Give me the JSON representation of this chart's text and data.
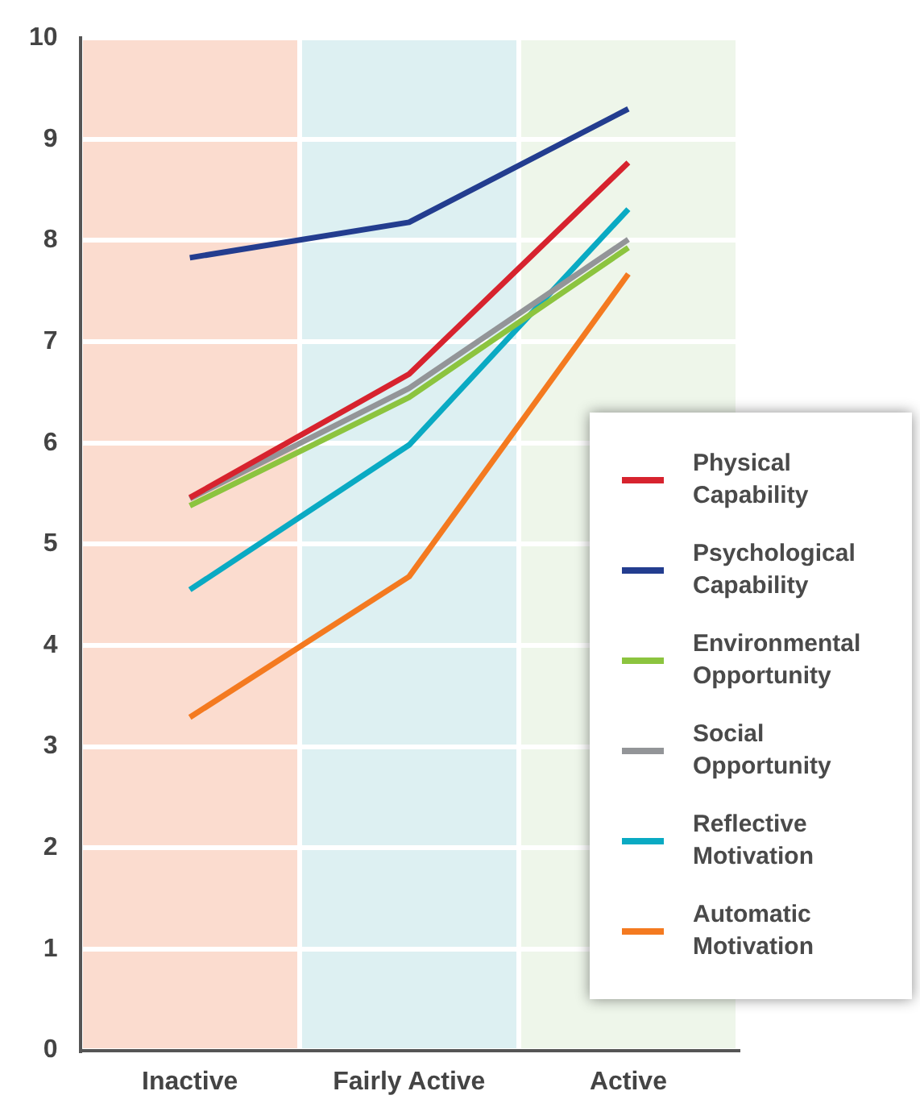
{
  "chart_data": {
    "type": "line",
    "categories": [
      "Inactive",
      "Fairly Active",
      "Active"
    ],
    "series": [
      {
        "name": "Physical Capability",
        "color": "#d7232e",
        "values": [
          5.46,
          6.68,
          8.77
        ]
      },
      {
        "name": "Psychological Capability",
        "color": "#233d8f",
        "values": [
          7.83,
          8.18,
          9.3
        ]
      },
      {
        "name": "Environmental Opportunity",
        "color": "#8cc43f",
        "values": [
          5.38,
          6.45,
          7.93
        ]
      },
      {
        "name": "Social Opportunity",
        "color": "#939598",
        "values": [
          5.45,
          6.54,
          8.01
        ]
      },
      {
        "name": "Reflective Motivation",
        "color": "#0aaac3",
        "values": [
          4.55,
          5.98,
          8.31
        ]
      },
      {
        "name": "Automatic Motivation",
        "color": "#f47a20",
        "values": [
          3.29,
          4.68,
          7.67
        ]
      }
    ],
    "bands": [
      {
        "axis": "x",
        "from": "Inactive",
        "to": "Inactive",
        "color": "#fbdccf"
      },
      {
        "axis": "x",
        "from": "Fairly Active",
        "to": "Fairly Active",
        "color": "#ddf0f2"
      },
      {
        "axis": "x",
        "from": "Active",
        "to": "Active",
        "color": "#eef6ea"
      }
    ],
    "ylim": [
      0,
      10
    ],
    "yticks": [
      0,
      1,
      2,
      3,
      4,
      5,
      6,
      7,
      8,
      9,
      10
    ],
    "grid": true,
    "legend": "right"
  }
}
